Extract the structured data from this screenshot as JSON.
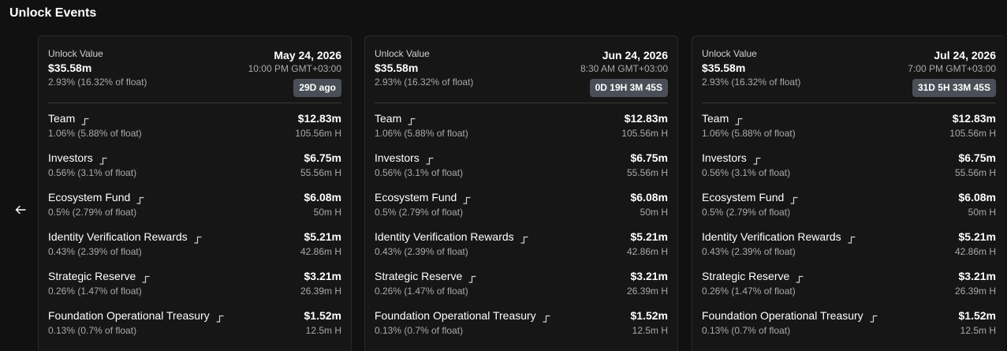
{
  "section": {
    "title": "Unlock Events"
  },
  "nav": {
    "prev_icon": "arrow-left-icon"
  },
  "cards": [
    {
      "label": "Unlock Value",
      "value": "$35.58m",
      "percent": "2.93% (16.32% of float)",
      "date": "May 24, 2026",
      "time": "10:00 PM GMT+03:00",
      "badge": "29D ago",
      "rows": [
        {
          "name": "Team",
          "sub": "1.06% (5.88% of float)",
          "amount": "$12.83m",
          "tokens": "105.56m H"
        },
        {
          "name": "Investors",
          "sub": "0.56% (3.1% of float)",
          "amount": "$6.75m",
          "tokens": "55.56m H"
        },
        {
          "name": "Ecosystem Fund",
          "sub": "0.5% (2.79% of float)",
          "amount": "$6.08m",
          "tokens": "50m H"
        },
        {
          "name": "Identity Verification Rewards",
          "sub": "0.43% (2.39% of float)",
          "amount": "$5.21m",
          "tokens": "42.86m H"
        },
        {
          "name": "Strategic Reserve",
          "sub": "0.26% (1.47% of float)",
          "amount": "$3.21m",
          "tokens": "26.39m H"
        },
        {
          "name": "Foundation Operational Treasury",
          "sub": "0.13% (0.7% of float)",
          "amount": "$1.52m",
          "tokens": "12.5m H"
        }
      ]
    },
    {
      "label": "Unlock Value",
      "value": "$35.58m",
      "percent": "2.93% (16.32% of float)",
      "date": "Jun 24, 2026",
      "time": "8:30 AM GMT+03:00",
      "badge": "0D 19H 3M 45S",
      "rows": [
        {
          "name": "Team",
          "sub": "1.06% (5.88% of float)",
          "amount": "$12.83m",
          "tokens": "105.56m H"
        },
        {
          "name": "Investors",
          "sub": "0.56% (3.1% of float)",
          "amount": "$6.75m",
          "tokens": "55.56m H"
        },
        {
          "name": "Ecosystem Fund",
          "sub": "0.5% (2.79% of float)",
          "amount": "$6.08m",
          "tokens": "50m H"
        },
        {
          "name": "Identity Verification Rewards",
          "sub": "0.43% (2.39% of float)",
          "amount": "$5.21m",
          "tokens": "42.86m H"
        },
        {
          "name": "Strategic Reserve",
          "sub": "0.26% (1.47% of float)",
          "amount": "$3.21m",
          "tokens": "26.39m H"
        },
        {
          "name": "Foundation Operational Treasury",
          "sub": "0.13% (0.7% of float)",
          "amount": "$1.52m",
          "tokens": "12.5m H"
        }
      ]
    },
    {
      "label": "Unlock Value",
      "value": "$35.58m",
      "percent": "2.93% (16.32% of float)",
      "date": "Jul 24, 2026",
      "time": "7:00 PM GMT+03:00",
      "badge": "31D 5H 33M 45S",
      "rows": [
        {
          "name": "Team",
          "sub": "1.06% (5.88% of float)",
          "amount": "$12.83m",
          "tokens": "105.56m H"
        },
        {
          "name": "Investors",
          "sub": "0.56% (3.1% of float)",
          "amount": "$6.75m",
          "tokens": "55.56m H"
        },
        {
          "name": "Ecosystem Fund",
          "sub": "0.5% (2.79% of float)",
          "amount": "$6.08m",
          "tokens": "50m H"
        },
        {
          "name": "Identity Verification Rewards",
          "sub": "0.43% (2.39% of float)",
          "amount": "$5.21m",
          "tokens": "42.86m H"
        },
        {
          "name": "Strategic Reserve",
          "sub": "0.26% (1.47% of float)",
          "amount": "$3.21m",
          "tokens": "26.39m H"
        },
        {
          "name": "Foundation Operational Treasury",
          "sub": "0.13% (0.7% of float)",
          "amount": "$1.52m",
          "tokens": "12.5m H"
        }
      ]
    }
  ]
}
